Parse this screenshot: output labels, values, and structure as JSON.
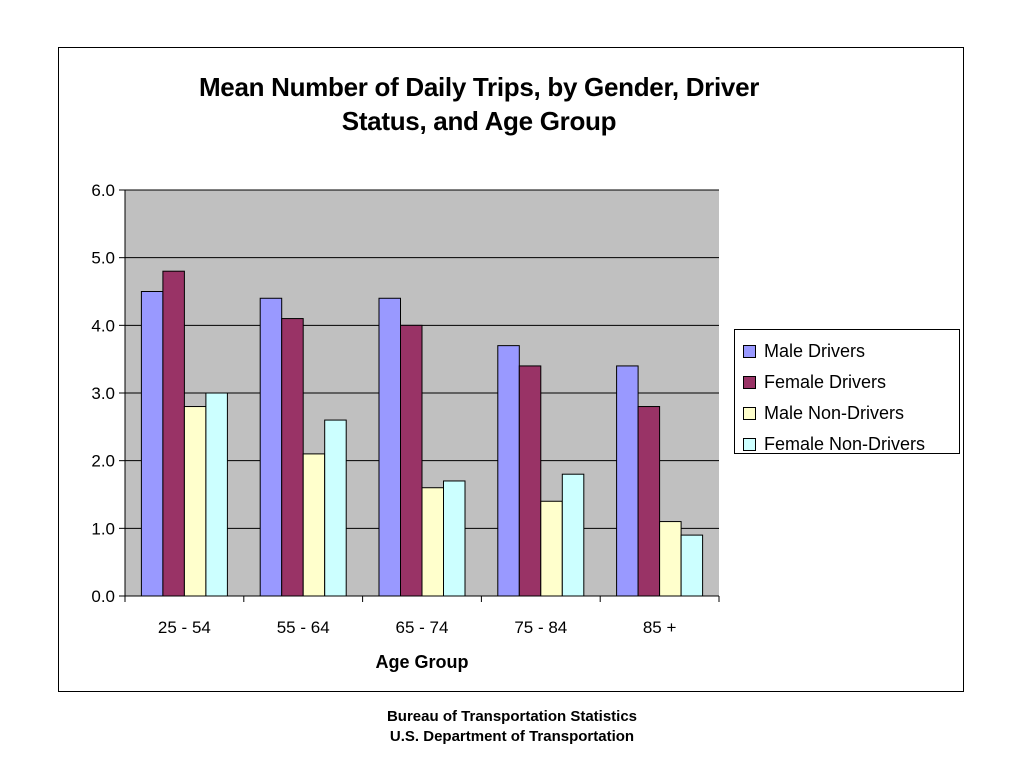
{
  "chart_data": {
    "type": "bar",
    "title_lines": [
      "Mean Number of Daily Trips, by Gender, Driver",
      "Status, and Age Group"
    ],
    "xlabel": "Age Group",
    "ylabel": "",
    "ylim": [
      0,
      6
    ],
    "yticks": [
      "0.0",
      "1.0",
      "2.0",
      "3.0",
      "4.0",
      "5.0",
      "6.0"
    ],
    "categories": [
      "25 - 54",
      "55 - 64",
      "65 - 74",
      "75 - 84",
      "85 +"
    ],
    "series": [
      {
        "name": "Male Drivers",
        "color": "#9999ff",
        "values": [
          4.5,
          4.4,
          4.4,
          3.7,
          3.4
        ]
      },
      {
        "name": "Female Drivers",
        "color": "#993366",
        "values": [
          4.8,
          4.1,
          4.0,
          3.4,
          2.8
        ]
      },
      {
        "name": "Male Non-Drivers",
        "color": "#ffffcc",
        "values": [
          2.8,
          2.1,
          1.6,
          1.4,
          1.1
        ]
      },
      {
        "name": "Female Non-Drivers",
        "color": "#ccffff",
        "values": [
          3.0,
          2.6,
          1.7,
          1.8,
          0.9
        ]
      }
    ],
    "grid": true,
    "plot_background": "#c0c0c0",
    "legend_position": "right"
  },
  "footer": {
    "line1": "Bureau of Transportation Statistics",
    "line2": "U.S. Department of Transportation"
  }
}
